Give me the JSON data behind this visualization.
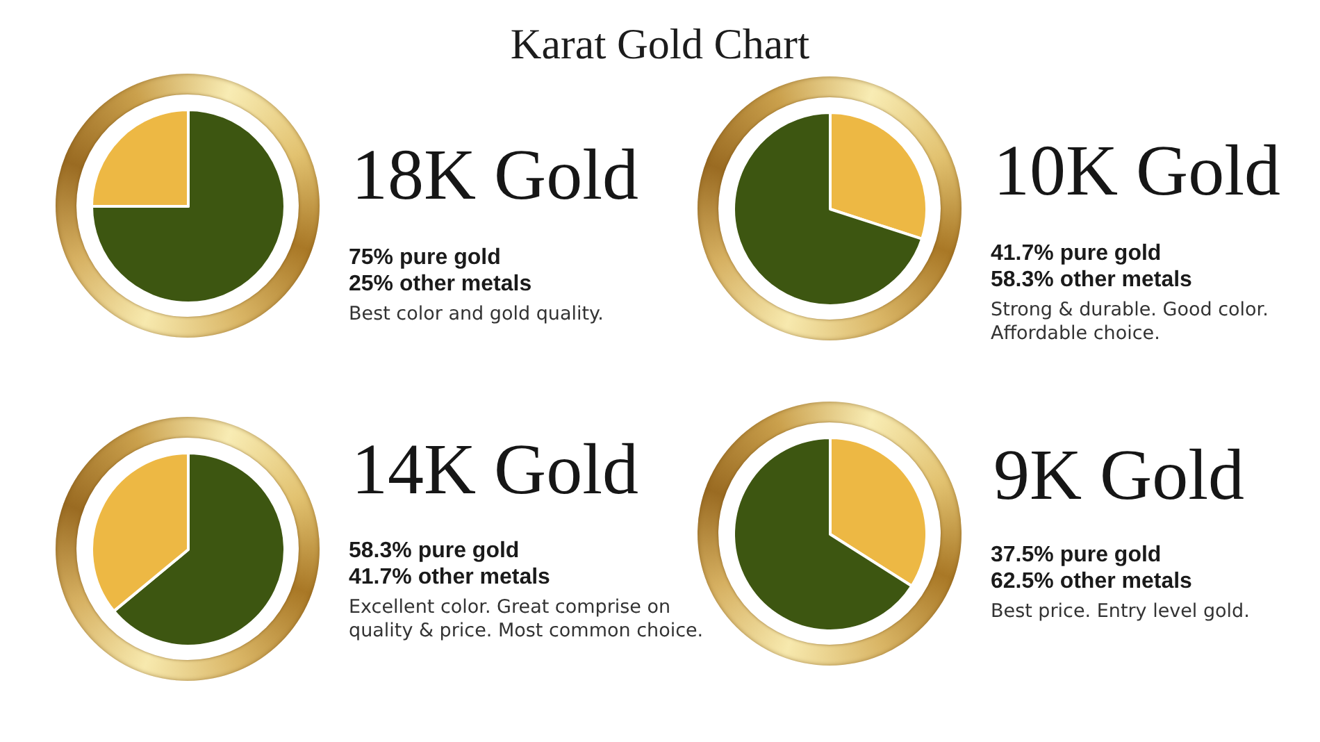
{
  "chart_data": [
    {
      "type": "other",
      "title": "Karat Gold Chart"
    },
    {
      "type": "pie",
      "title": "18K Gold",
      "categories": [
        null,
        null
      ],
      "values": [
        75,
        25
      ],
      "colors": [
        "#3d5611",
        "#edb844"
      ],
      "annotations": [
        "75% pure gold",
        "25% other metals",
        "Best color and gold quality."
      ]
    },
    {
      "type": "pie",
      "title": "10K Gold",
      "categories": [
        null,
        null
      ],
      "values": [
        30,
        70
      ],
      "colors": [
        "#edb844",
        "#3d5611"
      ],
      "annotations": [
        "41.7% pure gold",
        "58.3% other metals",
        "Strong & durable. Good color. Affordable choice."
      ]
    },
    {
      "type": "pie",
      "title": "14K Gold",
      "categories": [
        null,
        null
      ],
      "values": [
        64,
        36
      ],
      "colors": [
        "#3d5611",
        "#edb844"
      ],
      "annotations": [
        "58.3% pure gold",
        "41.7% other metals",
        "Excellent color. Great comprise on quality & price. Most common choice."
      ]
    },
    {
      "type": "pie",
      "title": "9K Gold",
      "categories": [
        null,
        null
      ],
      "values": [
        34,
        66
      ],
      "colors": [
        "#edb844",
        "#3d5611"
      ],
      "annotations": [
        "37.5% pure gold",
        "62.5% other metals",
        "Best price. Entry level gold."
      ]
    }
  ]
}
